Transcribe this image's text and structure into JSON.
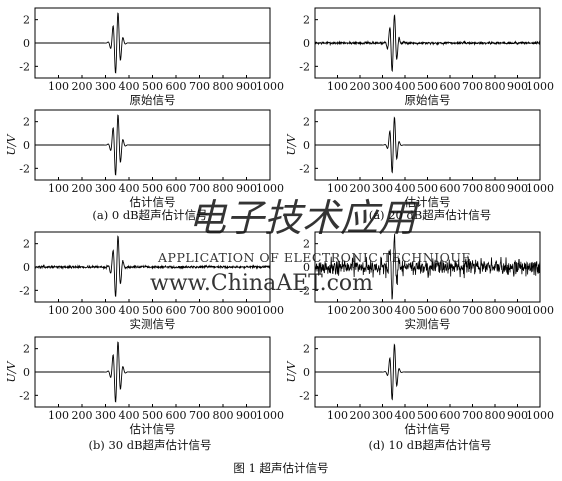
{
  "figure_caption": "图 1    超声估计信号",
  "watermark": {
    "logo_text": "电子技术应用",
    "line1": "APPLICATION OF ELECTRONIC TECHNIQUE",
    "line2": "www.ChinaAET.com"
  },
  "colors": {
    "line": "#000000",
    "axis": "#000000",
    "watermark": "#f0a3a8",
    "watermark_blue": "#b7c9e6"
  },
  "chart_data": [
    {
      "id": "p1",
      "type": "line",
      "caption": "原始信号",
      "xlabel": "",
      "ylabel": "",
      "xlim": [
        0,
        1000
      ],
      "ylim": [
        -3,
        3
      ],
      "xticks": [
        100,
        200,
        300,
        400,
        500,
        600,
        700,
        800,
        900,
        1000
      ],
      "yticks": [
        2,
        0,
        -2
      ],
      "signal": {
        "center": 348,
        "amplitude": 2.8,
        "period": 22,
        "width": 20,
        "noise": 0,
        "seed": 11
      }
    },
    {
      "id": "p2",
      "type": "line",
      "caption": "原始信号",
      "xlabel": "",
      "ylabel": "",
      "xlim": [
        0,
        1000
      ],
      "ylim": [
        -3,
        3
      ],
      "xticks": [
        100,
        200,
        300,
        400,
        500,
        600,
        700,
        800,
        900,
        1000
      ],
      "yticks": [
        2,
        0,
        -2
      ],
      "signal": {
        "center": 348,
        "amplitude": 2.6,
        "period": 22,
        "width": 20,
        "noise": 0.05,
        "seed": 7
      }
    },
    {
      "id": "p3",
      "type": "line",
      "caption": "估计信号",
      "xlabel": "",
      "ylabel": "U/V",
      "xlim": [
        0,
        1000
      ],
      "ylim": [
        -3,
        3
      ],
      "xticks": [
        100,
        200,
        300,
        400,
        500,
        600,
        700,
        800,
        900,
        1000
      ],
      "yticks": [
        2,
        0,
        -2
      ],
      "signal": {
        "center": 348,
        "amplitude": 2.8,
        "period": 22,
        "width": 20,
        "noise": 0,
        "seed": 3
      }
    },
    {
      "id": "p4",
      "type": "line",
      "caption": "估计信号",
      "xlabel": "",
      "ylabel": "U/V",
      "xlim": [
        0,
        1000
      ],
      "ylim": [
        -3,
        3
      ],
      "xticks": [
        100,
        200,
        300,
        400,
        500,
        600,
        700,
        800,
        900,
        1000
      ],
      "yticks": [
        2,
        0,
        -2
      ],
      "signal": {
        "center": 348,
        "amplitude": 2.6,
        "period": 22,
        "width": 18,
        "noise": 0,
        "seed": 5
      }
    },
    {
      "id": "p5",
      "type": "line",
      "caption": "实测信号",
      "xlabel": "",
      "ylabel": "",
      "xlim": [
        0,
        1000
      ],
      "ylim": [
        -3,
        3
      ],
      "xticks": [
        100,
        200,
        300,
        400,
        500,
        600,
        700,
        800,
        900,
        1000
      ],
      "yticks": [
        2,
        0,
        -2
      ],
      "signal": {
        "center": 348,
        "amplitude": 2.8,
        "period": 22,
        "width": 20,
        "noise": 0.05,
        "seed": 13
      }
    },
    {
      "id": "p6",
      "type": "line",
      "caption": "实测信号",
      "xlabel": "",
      "ylabel": "",
      "xlim": [
        0,
        1000
      ],
      "ylim": [
        -3,
        3
      ],
      "xticks": [
        100,
        200,
        300,
        400,
        500,
        600,
        700,
        800,
        900,
        1000
      ],
      "yticks": [
        2,
        0,
        -2
      ],
      "signal": {
        "center": 348,
        "amplitude": 2.8,
        "period": 22,
        "width": 20,
        "noise": 0.35,
        "seed": 21
      }
    },
    {
      "id": "p7",
      "type": "line",
      "caption": "估计信号",
      "xlabel": "",
      "ylabel": "U/V",
      "xlim": [
        0,
        1000
      ],
      "ylim": [
        -3,
        3
      ],
      "xticks": [
        100,
        200,
        300,
        400,
        500,
        600,
        700,
        800,
        900,
        1000
      ],
      "yticks": [
        2,
        0,
        -2
      ],
      "signal": {
        "center": 348,
        "amplitude": 2.8,
        "period": 22,
        "width": 20,
        "noise": 0,
        "seed": 17
      }
    },
    {
      "id": "p8",
      "type": "line",
      "caption": "估计信号",
      "xlabel": "",
      "ylabel": "U/V",
      "xlim": [
        0,
        1000
      ],
      "ylim": [
        -3,
        3
      ],
      "xticks": [
        100,
        200,
        300,
        400,
        500,
        600,
        700,
        800,
        900,
        1000
      ],
      "yticks": [
        2,
        0,
        -2
      ],
      "signal": {
        "center": 348,
        "amplitude": 2.6,
        "period": 22,
        "width": 18,
        "noise": 0,
        "seed": 19
      }
    }
  ],
  "subfigure_captions": [
    "(a) 0 dB超声估计信号",
    "(a) 20 dB超声估计信号",
    "(b) 30 dB超声估计信号",
    "(d) 10 dB超声估计信号"
  ]
}
